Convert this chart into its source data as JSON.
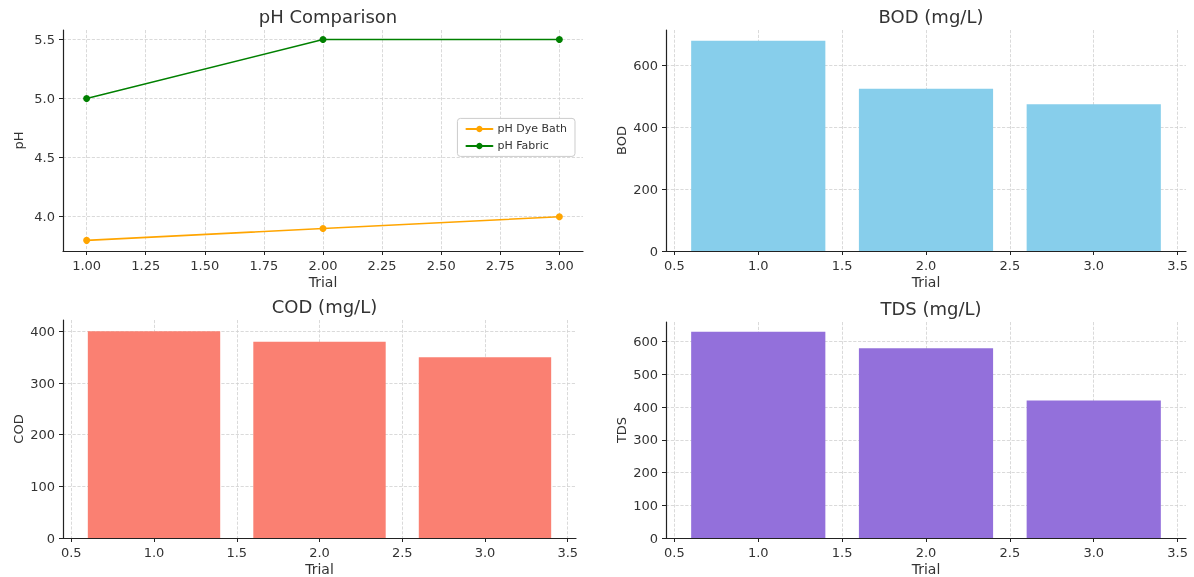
{
  "chart_data": [
    {
      "type": "line",
      "title": "pH Comparison",
      "xlabel": "Trial",
      "ylabel": "pH",
      "x": [
        1,
        2,
        3
      ],
      "xlim": [
        0.9,
        3.1
      ],
      "xticks": [
        {
          "value": 1,
          "label": "1.00"
        },
        {
          "value": 1.25,
          "label": "1.25"
        },
        {
          "value": 1.5,
          "label": "1.50"
        },
        {
          "value": 1.75,
          "label": "1.75"
        },
        {
          "value": 2,
          "label": "2.00"
        },
        {
          "value": 2.25,
          "label": "2.25"
        },
        {
          "value": 2.5,
          "label": "2.50"
        },
        {
          "value": 2.75,
          "label": "2.75"
        },
        {
          "value": 3,
          "label": "3.00"
        }
      ],
      "ylim": [
        3.71,
        5.58
      ],
      "yticks": [
        {
          "value": 4,
          "label": "4.0"
        },
        {
          "value": 4.5,
          "label": "4.5"
        },
        {
          "value": 5,
          "label": "5.0"
        },
        {
          "value": 5.5,
          "label": "5.5"
        }
      ],
      "grid": true,
      "legend": "right",
      "marker": "circle",
      "series": [
        {
          "name": "pH Dye Bath",
          "color": "#ffa500",
          "values": [
            3.8,
            3.9,
            4.0
          ]
        },
        {
          "name": "pH Fabric",
          "color": "#008000",
          "values": [
            5.0,
            5.5,
            5.5
          ]
        }
      ]
    },
    {
      "type": "bar",
      "title": "BOD (mg/L)",
      "xlabel": "Trial",
      "ylabel": "BOD",
      "x": [
        1,
        2,
        3
      ],
      "values": [
        680,
        525,
        475
      ],
      "color": "#87ceeb",
      "xlim": [
        0.45,
        3.55
      ],
      "xticks": [
        {
          "value": 0.5,
          "label": "0.5"
        },
        {
          "value": 1,
          "label": "1.0"
        },
        {
          "value": 1.5,
          "label": "1.5"
        },
        {
          "value": 2,
          "label": "2.0"
        },
        {
          "value": 2.5,
          "label": "2.5"
        },
        {
          "value": 3,
          "label": "3.0"
        },
        {
          "value": 3.5,
          "label": "3.5"
        }
      ],
      "ylim": [
        0,
        715
      ],
      "yticks": [
        0,
        200,
        400,
        600
      ],
      "grid": true
    },
    {
      "type": "bar",
      "title": "COD (mg/L)",
      "xlabel": "Trial",
      "ylabel": "COD",
      "x": [
        1,
        2,
        3
      ],
      "values": [
        400,
        380,
        350
      ],
      "color": "#fa8072",
      "xlim": [
        0.45,
        3.55
      ],
      "xticks": [
        {
          "value": 0.5,
          "label": "0.5"
        },
        {
          "value": 1,
          "label": "1.0"
        },
        {
          "value": 1.5,
          "label": "1.5"
        },
        {
          "value": 2,
          "label": "2.0"
        },
        {
          "value": 2.5,
          "label": "2.5"
        },
        {
          "value": 3,
          "label": "3.0"
        },
        {
          "value": 3.5,
          "label": "3.5"
        }
      ],
      "ylim": [
        0,
        422
      ],
      "yticks": [
        0,
        100,
        200,
        300,
        400
      ],
      "grid": true
    },
    {
      "type": "bar",
      "title": "TDS (mg/L)",
      "xlabel": "Trial",
      "ylabel": "TDS",
      "x": [
        1,
        2,
        3
      ],
      "values": [
        630,
        580,
        420
      ],
      "color": "#9370db",
      "xlim": [
        0.45,
        3.55
      ],
      "xticks": [
        {
          "value": 0.5,
          "label": "0.5"
        },
        {
          "value": 1,
          "label": "1.0"
        },
        {
          "value": 1.5,
          "label": "1.5"
        },
        {
          "value": 2,
          "label": "2.0"
        },
        {
          "value": 2.5,
          "label": "2.5"
        },
        {
          "value": 3,
          "label": "3.0"
        },
        {
          "value": 3.5,
          "label": "3.5"
        }
      ],
      "ylim": [
        0,
        660
      ],
      "yticks": [
        0,
        100,
        200,
        300,
        400,
        500,
        600
      ],
      "grid": true
    }
  ]
}
